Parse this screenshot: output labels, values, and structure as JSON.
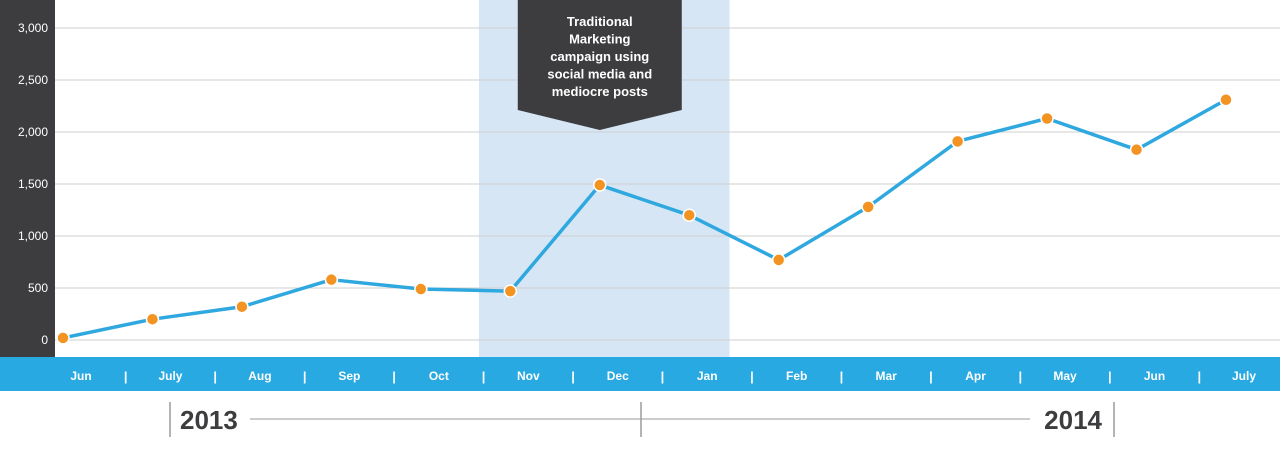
{
  "chart_data": {
    "type": "line",
    "x": [
      "Jun",
      "July",
      "Aug",
      "Sep",
      "Oct",
      "Nov",
      "Dec",
      "Jan",
      "Feb",
      "Mar",
      "Apr",
      "May",
      "Jun",
      "July"
    ],
    "series": [
      {
        "values": [
          20,
          200,
          320,
          580,
          490,
          470,
          1490,
          1200,
          770,
          1280,
          1910,
          2130,
          1830,
          2310
        ]
      }
    ],
    "yticks": [
      "0",
      "500",
      "1,000",
      "1,500",
      "2,000",
      "2,500",
      "3,000"
    ],
    "ylim": [
      0,
      3000
    ],
    "grid": true,
    "years": [
      "2013",
      "2014"
    ],
    "annotation": {
      "text": [
        "Traditional",
        "Marketing",
        "campaign using",
        "social media and",
        "mediocre posts"
      ],
      "highlight_from": "Nov",
      "highlight_to": "Jan"
    }
  },
  "colors": {
    "line": "#2fa8df",
    "marker": "#f39322",
    "axis_bar": "#29a9e1",
    "y_panel": "#3d3d3f",
    "highlight": "#d7e6f4",
    "callout": "#3d3d3f",
    "grid": "#cfcfcf"
  }
}
